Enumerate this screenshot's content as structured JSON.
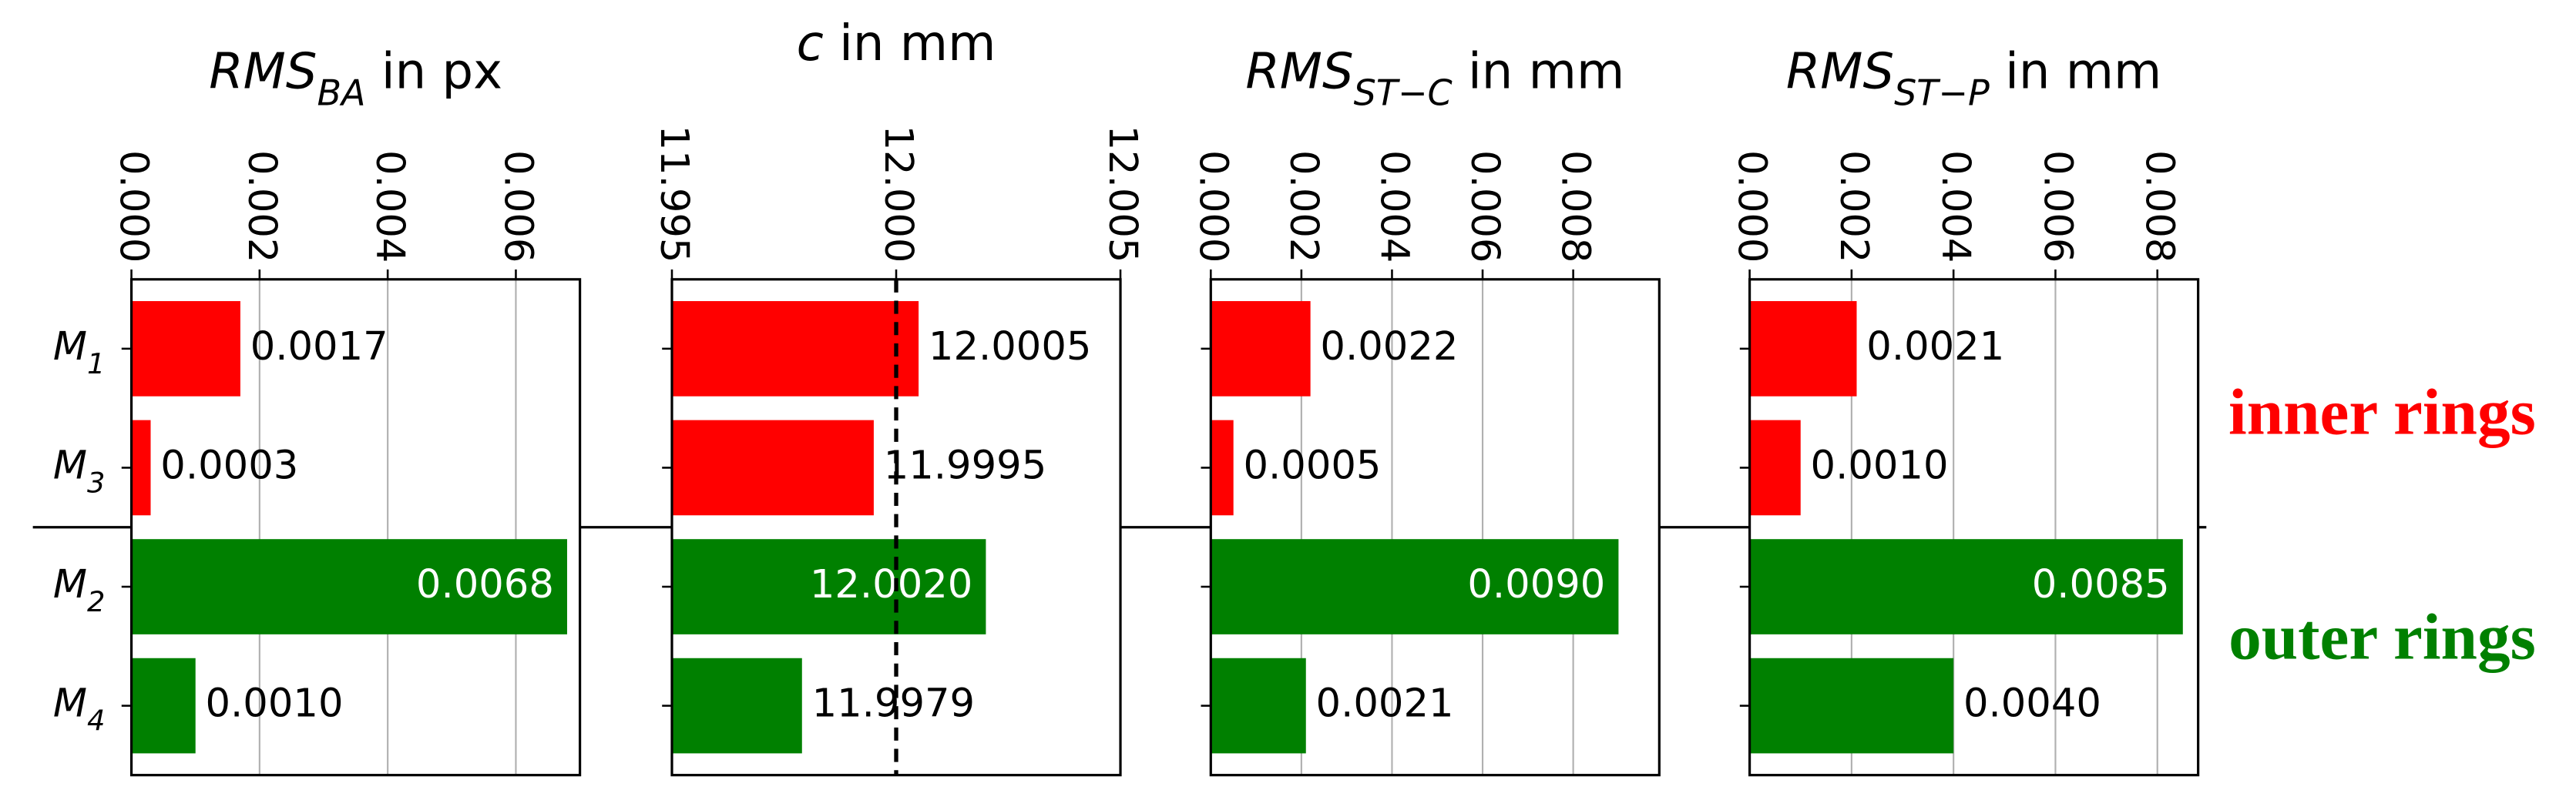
{
  "chart_data": [
    {
      "type": "bar",
      "orientation": "horizontal",
      "title": {
        "base": "RMS",
        "sub": "BA",
        "rest": " in px"
      },
      "categories": [
        {
          "base": "M",
          "sub": "1"
        },
        {
          "base": "M",
          "sub": "3"
        },
        {
          "base": "M",
          "sub": "2"
        },
        {
          "base": "M",
          "sub": "4"
        }
      ],
      "values": [
        0.0017,
        0.0003,
        0.0068,
        0.001
      ],
      "value_labels": [
        "0.0017",
        "0.0003",
        "0.0068",
        "0.0010"
      ],
      "colors": [
        "#ff0000",
        "#ff0000",
        "#008000",
        "#008000"
      ],
      "xlim": [
        0,
        0.007
      ],
      "xticks": [
        {
          "value": 0,
          "label": "0.000"
        },
        {
          "value": 0.002,
          "label": "0.002"
        },
        {
          "value": 0.004,
          "label": "0.004"
        },
        {
          "value": 0.006,
          "label": "0.006"
        }
      ],
      "grid": true
    },
    {
      "type": "bar",
      "orientation": "horizontal",
      "title": {
        "base": "c",
        "rest": " in mm"
      },
      "values": [
        12.0005,
        11.9995,
        12.002,
        11.9979
      ],
      "value_labels": [
        "12.0005",
        "11.9995",
        "12.0020",
        "11.9979"
      ],
      "colors": [
        "#ff0000",
        "#ff0000",
        "#008000",
        "#008000"
      ],
      "xlim": [
        11.995,
        12.005
      ],
      "xticks": [
        {
          "value": 11.995,
          "label": "11.995"
        },
        {
          "value": 12,
          "label": "12.000"
        },
        {
          "value": 12.005,
          "label": "12.005"
        }
      ],
      "grid": false,
      "vline": 12
    },
    {
      "type": "bar",
      "orientation": "horizontal",
      "title": {
        "base": "RMS",
        "sub": "ST−C",
        "rest": " in mm"
      },
      "values": [
        0.0022,
        0.0005,
        0.009,
        0.0021
      ],
      "value_labels": [
        "0.0022",
        "0.0005",
        "0.0090",
        "0.0021"
      ],
      "colors": [
        "#ff0000",
        "#ff0000",
        "#008000",
        "#008000"
      ],
      "xlim": [
        0,
        0.0099
      ],
      "xticks": [
        {
          "value": 0,
          "label": "0.000"
        },
        {
          "value": 0.002,
          "label": "0.002"
        },
        {
          "value": 0.004,
          "label": "0.004"
        },
        {
          "value": 0.006,
          "label": "0.006"
        },
        {
          "value": 0.008,
          "label": "0.008"
        }
      ],
      "grid": true
    },
    {
      "type": "bar",
      "orientation": "horizontal",
      "title": {
        "base": "RMS",
        "sub": "ST−P",
        "rest": " in mm"
      },
      "values": [
        0.0021,
        0.001,
        0.0085,
        0.004
      ],
      "value_labels": [
        "0.0021",
        "0.0010",
        "0.0085",
        "0.0040"
      ],
      "colors": [
        "#ff0000",
        "#ff0000",
        "#008000",
        "#008000"
      ],
      "xlim": [
        0,
        0.0088
      ],
      "xticks": [
        {
          "value": 0,
          "label": "0.000"
        },
        {
          "value": 0.002,
          "label": "0.002"
        },
        {
          "value": 0.004,
          "label": "0.004"
        },
        {
          "value": 0.006,
          "label": "0.006"
        },
        {
          "value": 0.008,
          "label": "0.008"
        }
      ],
      "grid": true
    }
  ],
  "annotations": [
    {
      "text": "inner rings",
      "color": "#ff0000"
    },
    {
      "text": "outer rings",
      "color": "#008000"
    }
  ]
}
